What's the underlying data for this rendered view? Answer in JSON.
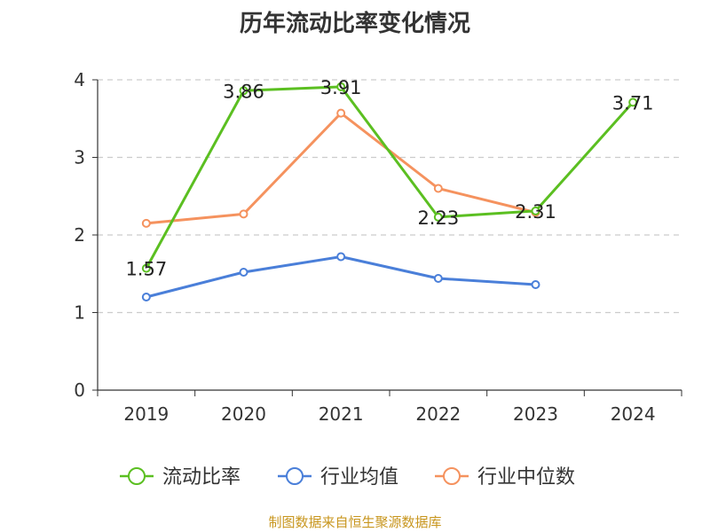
{
  "chart_data": {
    "type": "line",
    "title": "历年流动比率变化情况",
    "categories": [
      "2019",
      "2020",
      "2021",
      "2022",
      "2023",
      "2024"
    ],
    "ylim": [
      0,
      4
    ],
    "yticks": [
      0,
      1,
      2,
      3,
      4
    ],
    "grid": true,
    "legend_position": "bottom",
    "series": [
      {
        "name": "流动比率",
        "color": "#5bbf21",
        "values": [
          1.57,
          3.86,
          3.91,
          2.23,
          2.31,
          3.71
        ],
        "labels": [
          "1.57",
          "3.86",
          "3.91",
          "2.23",
          "2.31",
          "3.71"
        ]
      },
      {
        "name": "行业均值",
        "color": "#4a7fd9",
        "values": [
          1.2,
          1.52,
          1.72,
          1.44,
          1.36,
          null
        ]
      },
      {
        "name": "行业中位数",
        "color": "#f5925e",
        "values": [
          2.15,
          2.27,
          3.57,
          2.6,
          2.29,
          null
        ]
      }
    ]
  },
  "footer": "制图数据来自恒生聚源数据库"
}
